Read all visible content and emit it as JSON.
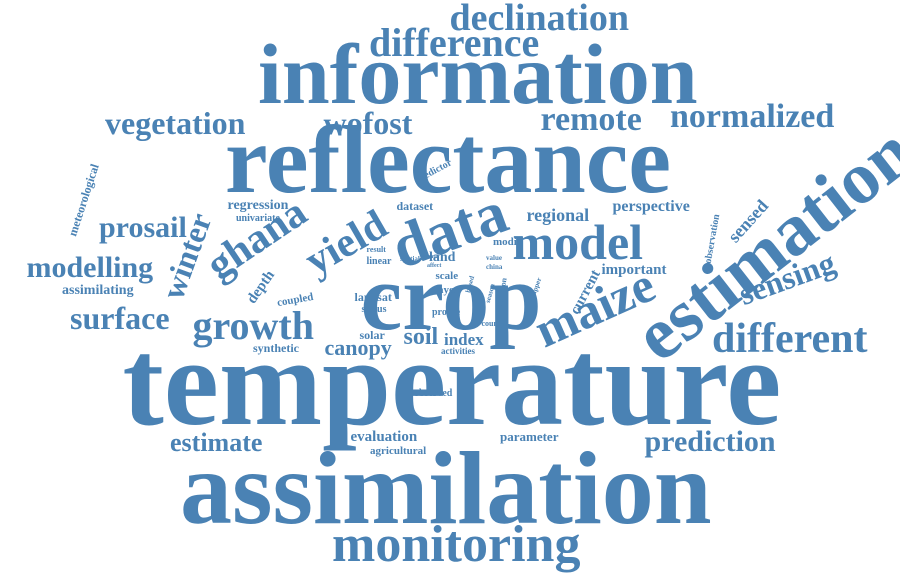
{
  "color": "#4a82b4",
  "words": [
    {
      "text": "temperature",
      "size": 124,
      "rot": 0
    },
    {
      "text": "assimilation",
      "size": 104,
      "rot": 0
    },
    {
      "text": "reflectance",
      "size": 96,
      "rot": 0
    },
    {
      "text": "information",
      "size": 86,
      "rot": 0
    },
    {
      "text": "crop",
      "size": 94,
      "rot": 0
    },
    {
      "text": "estimation",
      "size": 74,
      "rot": -38
    },
    {
      "text": "data",
      "size": 62,
      "rot": -20
    },
    {
      "text": "model",
      "size": 50,
      "rot": 0
    },
    {
      "text": "monitoring",
      "size": 52,
      "rot": 0
    },
    {
      "text": "maize",
      "size": 50,
      "rot": -24
    },
    {
      "text": "difference",
      "size": 40,
      "rot": 0
    },
    {
      "text": "declination",
      "size": 38,
      "rot": 0
    },
    {
      "text": "different",
      "size": 42,
      "rot": 0
    },
    {
      "text": "ghana",
      "size": 42,
      "rot": -34
    },
    {
      "text": "yield",
      "size": 42,
      "rot": -30
    },
    {
      "text": "growth",
      "size": 40,
      "rot": 0
    },
    {
      "text": "remote",
      "size": 34,
      "rot": 0
    },
    {
      "text": "normalized",
      "size": 34,
      "rot": 0
    },
    {
      "text": "vegetation",
      "size": 32,
      "rot": 0
    },
    {
      "text": "wofost",
      "size": 32,
      "rot": 0
    },
    {
      "text": "prediction",
      "size": 30,
      "rot": 0
    },
    {
      "text": "sensing",
      "size": 32,
      "rot": -20
    },
    {
      "text": "surface",
      "size": 32,
      "rot": 0
    },
    {
      "text": "modelling",
      "size": 30,
      "rot": 0
    },
    {
      "text": "prosail",
      "size": 30,
      "rot": 0
    },
    {
      "text": "winter",
      "size": 32,
      "rot": -70
    },
    {
      "text": "estimate",
      "size": 26,
      "rot": 0
    },
    {
      "text": "canopy",
      "size": 22,
      "rot": 0
    },
    {
      "text": "soil",
      "size": 24,
      "rot": 0
    },
    {
      "text": "regional",
      "size": 18,
      "rot": 0
    },
    {
      "text": "perspective",
      "size": 16,
      "rot": 0
    },
    {
      "text": "sensed",
      "size": 18,
      "rot": -48
    },
    {
      "text": "important",
      "size": 15,
      "rot": 0
    },
    {
      "text": "current",
      "size": 15,
      "rot": -62
    },
    {
      "text": "index",
      "size": 17,
      "rot": 0
    },
    {
      "text": "evaluation",
      "size": 15,
      "rot": 0
    },
    {
      "text": "parameter",
      "size": 13,
      "rot": 0
    },
    {
      "text": "depth",
      "size": 15,
      "rot": -55
    },
    {
      "text": "regression",
      "size": 14,
      "rot": 0
    },
    {
      "text": "assimilating",
      "size": 14,
      "rot": 0
    },
    {
      "text": "synthetic",
      "size": 12,
      "rot": 0
    },
    {
      "text": "land",
      "size": 14,
      "rot": 0
    },
    {
      "text": "solar",
      "size": 12,
      "rot": 0
    },
    {
      "text": "coupled",
      "size": 11,
      "rot": -10
    },
    {
      "text": "landsat",
      "size": 12,
      "rot": 0
    },
    {
      "text": "status",
      "size": 10,
      "rot": 0
    },
    {
      "text": "scale",
      "size": 11,
      "rot": 0
    },
    {
      "text": "layer",
      "size": 11,
      "rot": 0
    },
    {
      "text": "profile",
      "size": 10,
      "rot": 0
    },
    {
      "text": "modi",
      "size": 11,
      "rot": 0
    },
    {
      "text": "dataset",
      "size": 12,
      "rot": 0
    },
    {
      "text": "univariate",
      "size": 10,
      "rot": 0
    },
    {
      "text": "predictor",
      "size": 10,
      "rot": -28
    },
    {
      "text": "meteorological",
      "size": 12,
      "rot": -72
    },
    {
      "text": "observation",
      "size": 10,
      "rot": -80
    },
    {
      "text": "agricultural",
      "size": 11,
      "rot": 0
    },
    {
      "text": "observed",
      "size": 10,
      "rot": 0
    },
    {
      "text": "activities",
      "size": 9,
      "rot": 0
    },
    {
      "text": "county",
      "size": 8,
      "rot": 0
    },
    {
      "text": "linear",
      "size": 10,
      "rot": 0
    },
    {
      "text": "result",
      "size": 8,
      "rot": 0
    },
    {
      "text": "spatial",
      "size": 7,
      "rot": 0
    },
    {
      "text": "value",
      "size": 7,
      "rot": 0
    },
    {
      "text": "china",
      "size": 7,
      "rot": 0
    },
    {
      "text": "function",
      "size": 8,
      "rot": -80
    },
    {
      "text": "upper",
      "size": 7,
      "rot": -70
    },
    {
      "text": "based",
      "size": 7,
      "rot": -75
    },
    {
      "text": "season",
      "size": 7,
      "rot": -75
    },
    {
      "text": "dear",
      "size": 6,
      "rot": 0
    },
    {
      "text": "affect",
      "size": 6,
      "rot": 0
    }
  ]
}
